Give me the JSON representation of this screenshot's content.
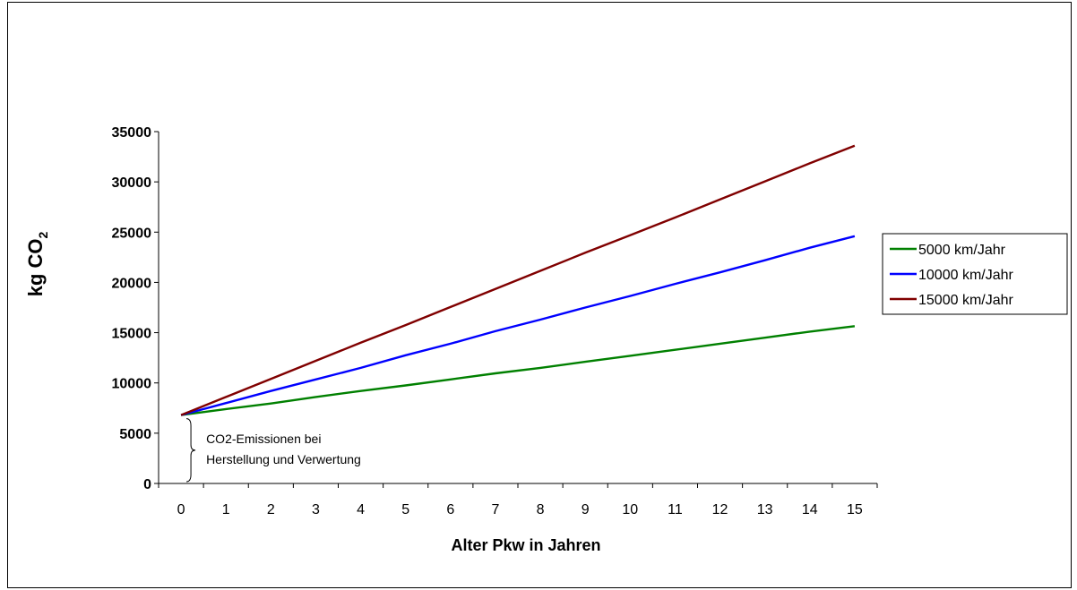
{
  "colors": {
    "s5000": "#008000",
    "s10000": "#0000ff",
    "s15000": "#800000"
  },
  "chart_data": {
    "type": "line",
    "title": "",
    "xlabel": "Alter Pkw in Jahren",
    "ylabel_main": "kg CO",
    "ylabel_sub": "2",
    "x": [
      0,
      1,
      2,
      3,
      4,
      5,
      6,
      7,
      8,
      9,
      10,
      11,
      12,
      13,
      14,
      15
    ],
    "xlim": [
      -0.5,
      15.5
    ],
    "ylim": [
      0,
      35000
    ],
    "yticks": [
      0,
      5000,
      10000,
      15000,
      20000,
      25000,
      30000,
      35000
    ],
    "grid": false,
    "legend_position": "right",
    "series": [
      {
        "name": "5000 km/Jahr",
        "color_key": "s5000",
        "values": [
          6800,
          7400,
          7950,
          8600,
          9200,
          9750,
          10350,
          10950,
          11500,
          12100,
          12700,
          13300,
          13900,
          14500,
          15100,
          15650
        ]
      },
      {
        "name": "10000 km/Jahr",
        "color_key": "s10000",
        "values": [
          6800,
          8000,
          9200,
          10350,
          11500,
          12750,
          13900,
          15150,
          16300,
          17500,
          18650,
          19850,
          21000,
          22200,
          23450,
          24600
        ]
      },
      {
        "name": "15000 km/Jahr",
        "color_key": "s15000",
        "values": [
          6800,
          8600,
          10400,
          12200,
          14000,
          15750,
          17550,
          19350,
          21150,
          22950,
          24700,
          26450,
          28250,
          30050,
          31850,
          33600
        ]
      }
    ],
    "annotation": {
      "lines": [
        "CO2-Emissionen bei",
        "Herstellung und Verwertung"
      ],
      "from": 0,
      "to": 6800
    }
  }
}
